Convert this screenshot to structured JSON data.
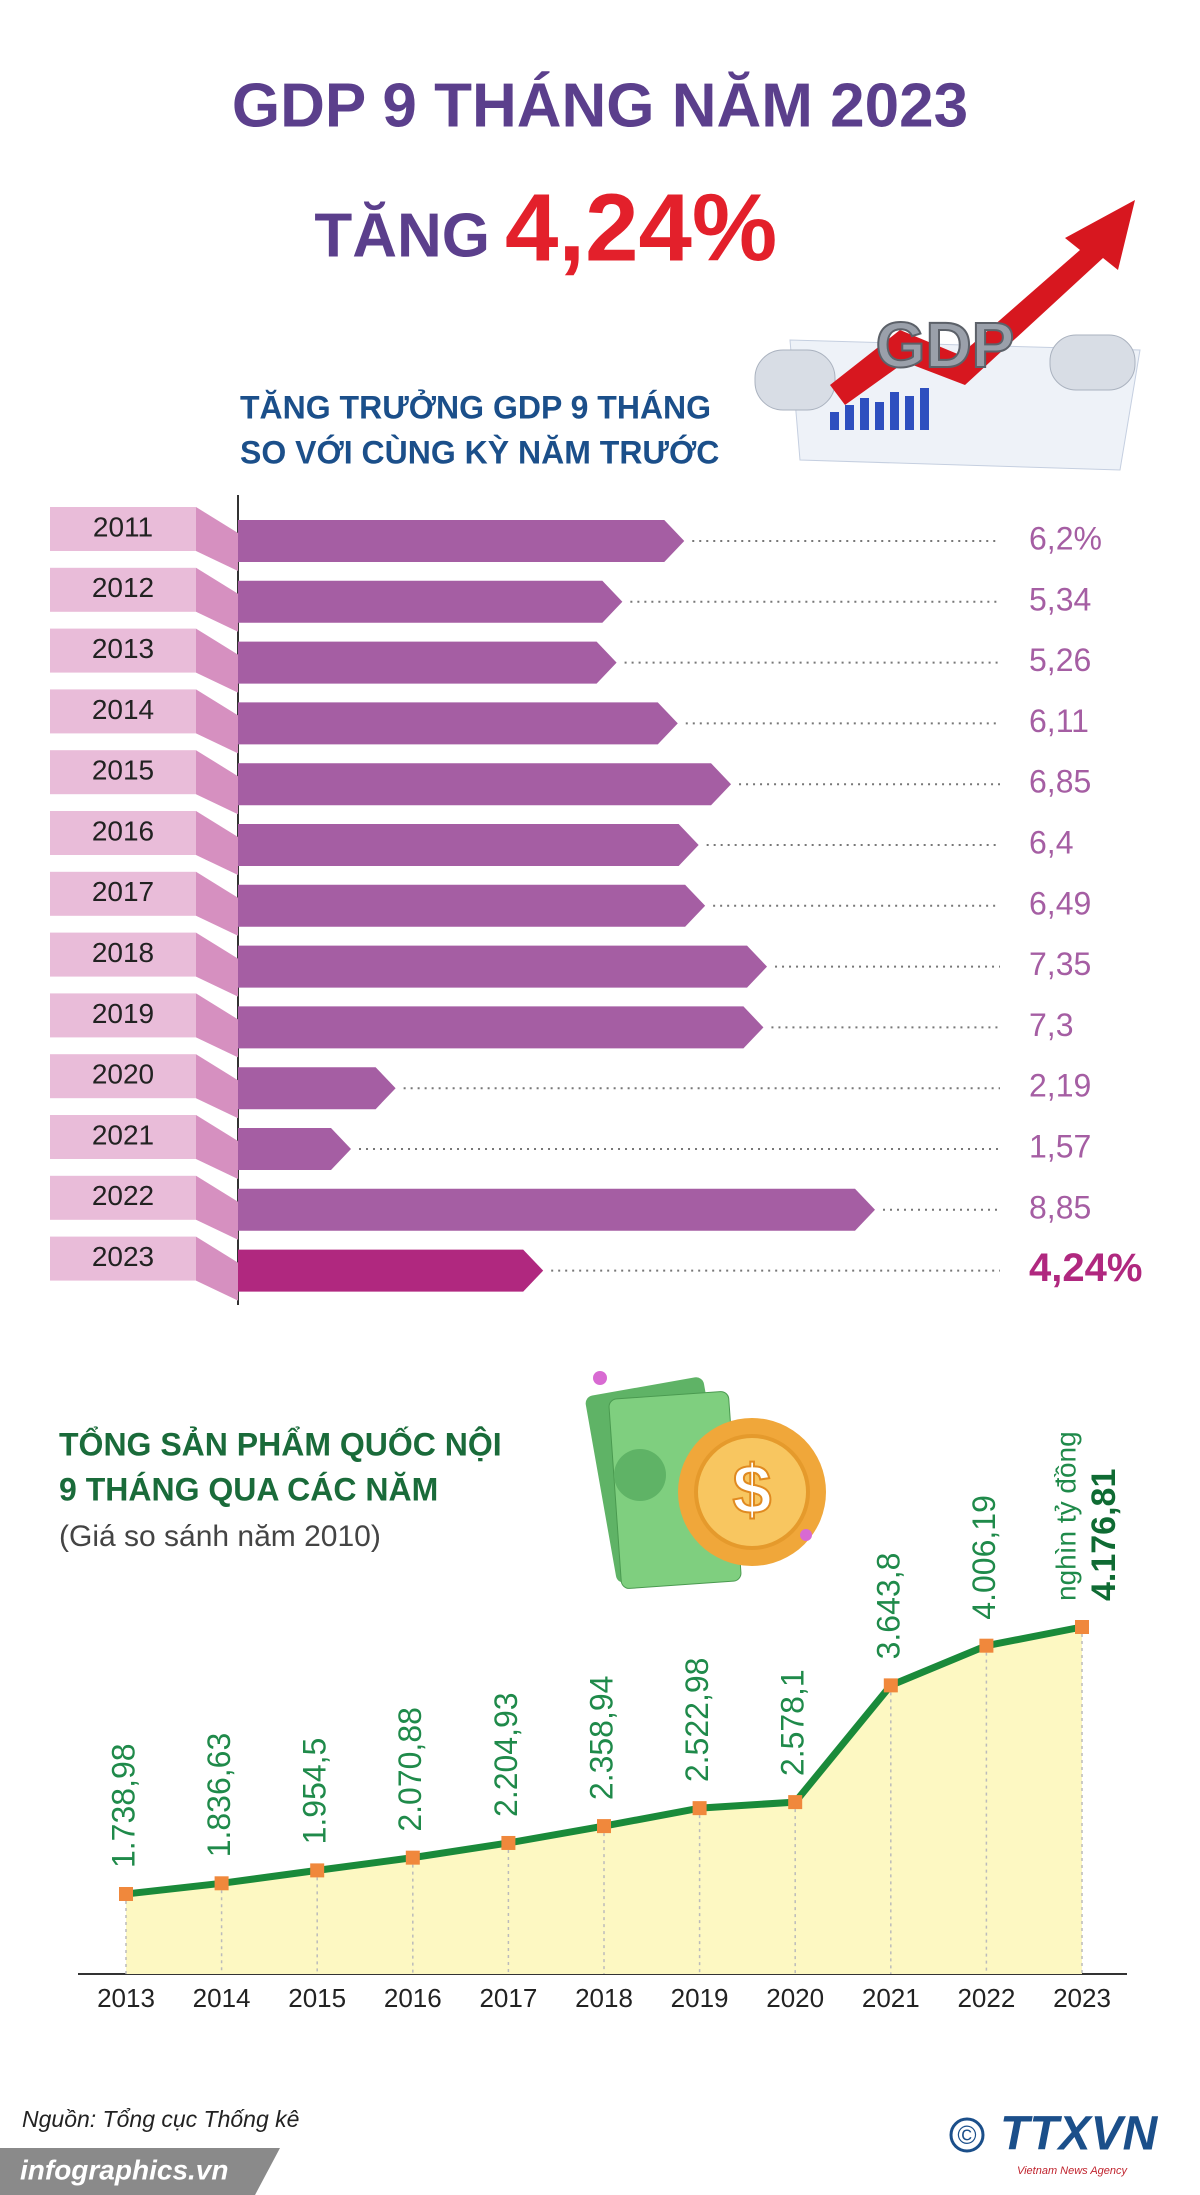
{
  "header": {
    "title": "GDP 9 THÁNG NĂM 2023",
    "subtitle_prefix": "TĂNG",
    "subtitle_value": "4,24%"
  },
  "illustrations": {
    "gdp_icon": "GDP",
    "coin": "$"
  },
  "chart_data": [
    {
      "type": "bar",
      "orientation": "horizontal",
      "title": [
        "TĂNG TRƯỞNG GDP 9 THÁNG",
        "SO VỚI CÙNG KỲ NĂM TRƯỚC"
      ],
      "categories": [
        "2011",
        "2012",
        "2013",
        "2014",
        "2015",
        "2016",
        "2017",
        "2018",
        "2019",
        "2020",
        "2021",
        "2022",
        "2023"
      ],
      "values": [
        6.2,
        5.34,
        5.26,
        6.11,
        6.85,
        6.4,
        6.49,
        7.35,
        7.3,
        2.19,
        1.57,
        8.85,
        4.24
      ],
      "value_labels": [
        "6,2%",
        "5,34",
        "5,26",
        "6,11",
        "6,85",
        "6,4",
        "6,49",
        "7,35",
        "7,3",
        "2,19",
        "1,57",
        "8,85",
        "4,24%"
      ],
      "colors": [
        "#a55ea3",
        "#a55ea3",
        "#a55ea3",
        "#a55ea3",
        "#a55ea3",
        "#a55ea3",
        "#a55ea3",
        "#a55ea3",
        "#a55ea3",
        "#a55ea3",
        "#a55ea3",
        "#a55ea3",
        "#b0287f"
      ]
    },
    {
      "type": "area",
      "title": [
        "TỔNG SẢN PHẨM QUỐC NỘI",
        "9 THÁNG QUA CÁC NĂM"
      ],
      "subtitle": "(Giá so sánh năm 2010)",
      "unit": "nghìn tỷ đồng",
      "categories": [
        "2013",
        "2014",
        "2015",
        "2016",
        "2017",
        "2018",
        "2019",
        "2020",
        "2021",
        "2022",
        "2023"
      ],
      "values": [
        1738.98,
        1836.63,
        1954.5,
        2070.88,
        2204.93,
        2358.94,
        2522.98,
        2578.1,
        3643.8,
        4006.19,
        4176.81
      ],
      "value_labels": [
        "1.738,98",
        "1.836,63",
        "1.954,5",
        "2.070,88",
        "2.204,93",
        "2.358,94",
        "2.522,98",
        "2.578,1",
        "3.643,8",
        "4.006,19",
        "4.176,81"
      ],
      "color": "#1a8a3a",
      "fill": "#fdf8c2",
      "marker_color": "#f0883c"
    }
  ],
  "footer": {
    "source": "Nguồn: Tổng cục Thống kê",
    "website": "infographics.vn",
    "copyright": "©",
    "logo": "TTXVN",
    "logo_subtitle": "Vietnam News Agency"
  }
}
